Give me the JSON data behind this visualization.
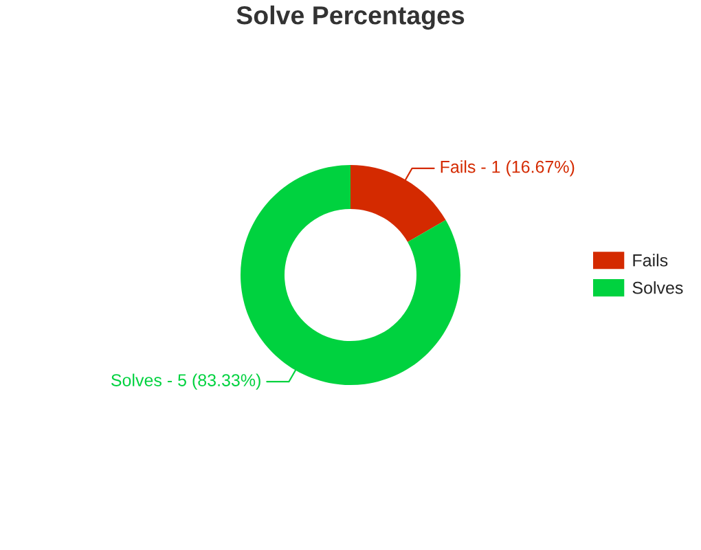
{
  "chart_data": {
    "type": "donut",
    "title": "Solve Percentages",
    "categories": [
      "Fails",
      "Solves"
    ],
    "values": [
      16.67,
      83.33
    ],
    "colors": [
      "#d42a00",
      "#00d23f"
    ],
    "value_labels": [
      "Fails - 1 (16.67%)",
      "Solves - 5 (83.33%)"
    ],
    "legend": "right"
  }
}
